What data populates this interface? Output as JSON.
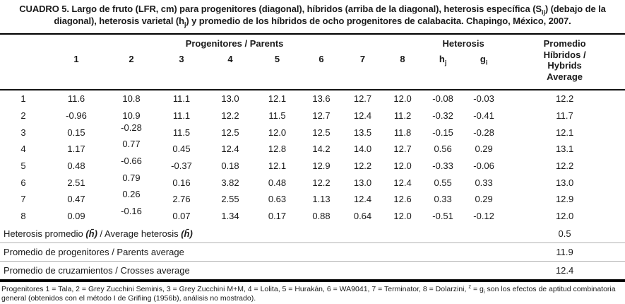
{
  "title": {
    "part1": "CUADRO 5. Largo de fruto (LFR, cm) para progenitores (diagonal), híbridos (arriba de la diagonal), heterosis específica (S",
    "sub1": "ij",
    "part2": ") (debajo de la",
    "part3": "diagonal), heterosis varietal (h",
    "sub2": "j",
    "part4": ") y promedio de los híbridos de ocho progenitores de calabacita. Chapingo, México, 2007."
  },
  "header": {
    "parents_group": "Progenitores / Parents",
    "heterosis_group": "Heterosis",
    "avg_header": "Promedio\nHíbridos /\nHybrids\nAverage",
    "columns": [
      "1",
      "2",
      "3",
      "4",
      "5",
      "6",
      "7",
      "8"
    ],
    "hj_base": "h",
    "hj_sub": "j",
    "gi_base": "g",
    "gi_sub": "i"
  },
  "table": {
    "rows": [
      {
        "label": "1",
        "values": [
          "11.6",
          "10.8",
          "11.1",
          "13.0",
          "12.1",
          "13.6",
          "12.7",
          "12.0",
          "-0.08",
          "-0.03",
          "12.2"
        ]
      },
      {
        "label": "2",
        "values": [
          "-0.96",
          "10.9",
          "11.1",
          "12.2",
          "11.5",
          "12.7",
          "12.4",
          "11.2",
          "-0.32",
          "-0.41",
          "11.7"
        ]
      },
      {
        "label": "3",
        "values": [
          "0.15",
          "-0.28",
          "11.5",
          "12.5",
          "12.0",
          "12.5",
          "13.5",
          "11.8",
          "-0.15",
          "-0.28",
          "12.1"
        ]
      },
      {
        "label": "4",
        "values": [
          "1.17",
          "0.77",
          "0.45",
          "12.4",
          "12.8",
          "14.2",
          "14.0",
          "12.7",
          "0.56",
          "0.29",
          "13.1"
        ]
      },
      {
        "label": "5",
        "values": [
          "0.48",
          "-0.66",
          "-0.37",
          "0.18",
          "12.1",
          "12.9",
          "12.2",
          "12.0",
          "-0.33",
          "-0.06",
          "12.2"
        ]
      },
      {
        "label": "6",
        "values": [
          "2.51",
          "0.79",
          "0.16",
          "3.82",
          "0.48",
          "12.2",
          "13.0",
          "12.4",
          "0.55",
          "0.33",
          "13.0"
        ]
      },
      {
        "label": "7",
        "values": [
          "0.47",
          "0.26",
          "2.76",
          "2.55",
          "0.63",
          "1.13",
          "12.4",
          "12.6",
          "0.33",
          "0.29",
          "12.9"
        ]
      },
      {
        "label": "8",
        "values": [
          "0.09",
          "-0.16",
          "0.07",
          "1.34",
          "0.17",
          "0.88",
          "0.64",
          "12.0",
          "-0.51",
          "-0.12",
          "12.0"
        ]
      }
    ]
  },
  "footer": {
    "rows": [
      {
        "pre": "Heterosis promedio ",
        "sym1": "(h̄)",
        "mid": " / Average heterosis ",
        "sym2": "(h̄)",
        "value": "0.5"
      },
      {
        "pre": "Promedio de progenitores / Parents average",
        "value": "11.9"
      },
      {
        "pre": "Promedio de cruzamientos / Crosses average",
        "value": "12.4"
      }
    ]
  },
  "footnote": {
    "part1": "Progenitores 1 = Tala, 2 = Grey Zucchini Seminis, 3 = Grey Zucchini M+M, 4 = Lolita, 5 = Hurakán, 6 = WA9041, 7 = Terminator, 8 = Dolarzini, ",
    "sup": "z",
    "part2": " = g",
    "sub": "i",
    "part3": " son los efectos de aptitud combinatoria general (obtenidos con el método I de Grifiing (1956b), análisis no mostrado)."
  },
  "colors": {
    "background": "#ffffff",
    "text": "#1a1a1a",
    "rule_heavy": "#000000",
    "rule_light": "#b3b3b3"
  }
}
